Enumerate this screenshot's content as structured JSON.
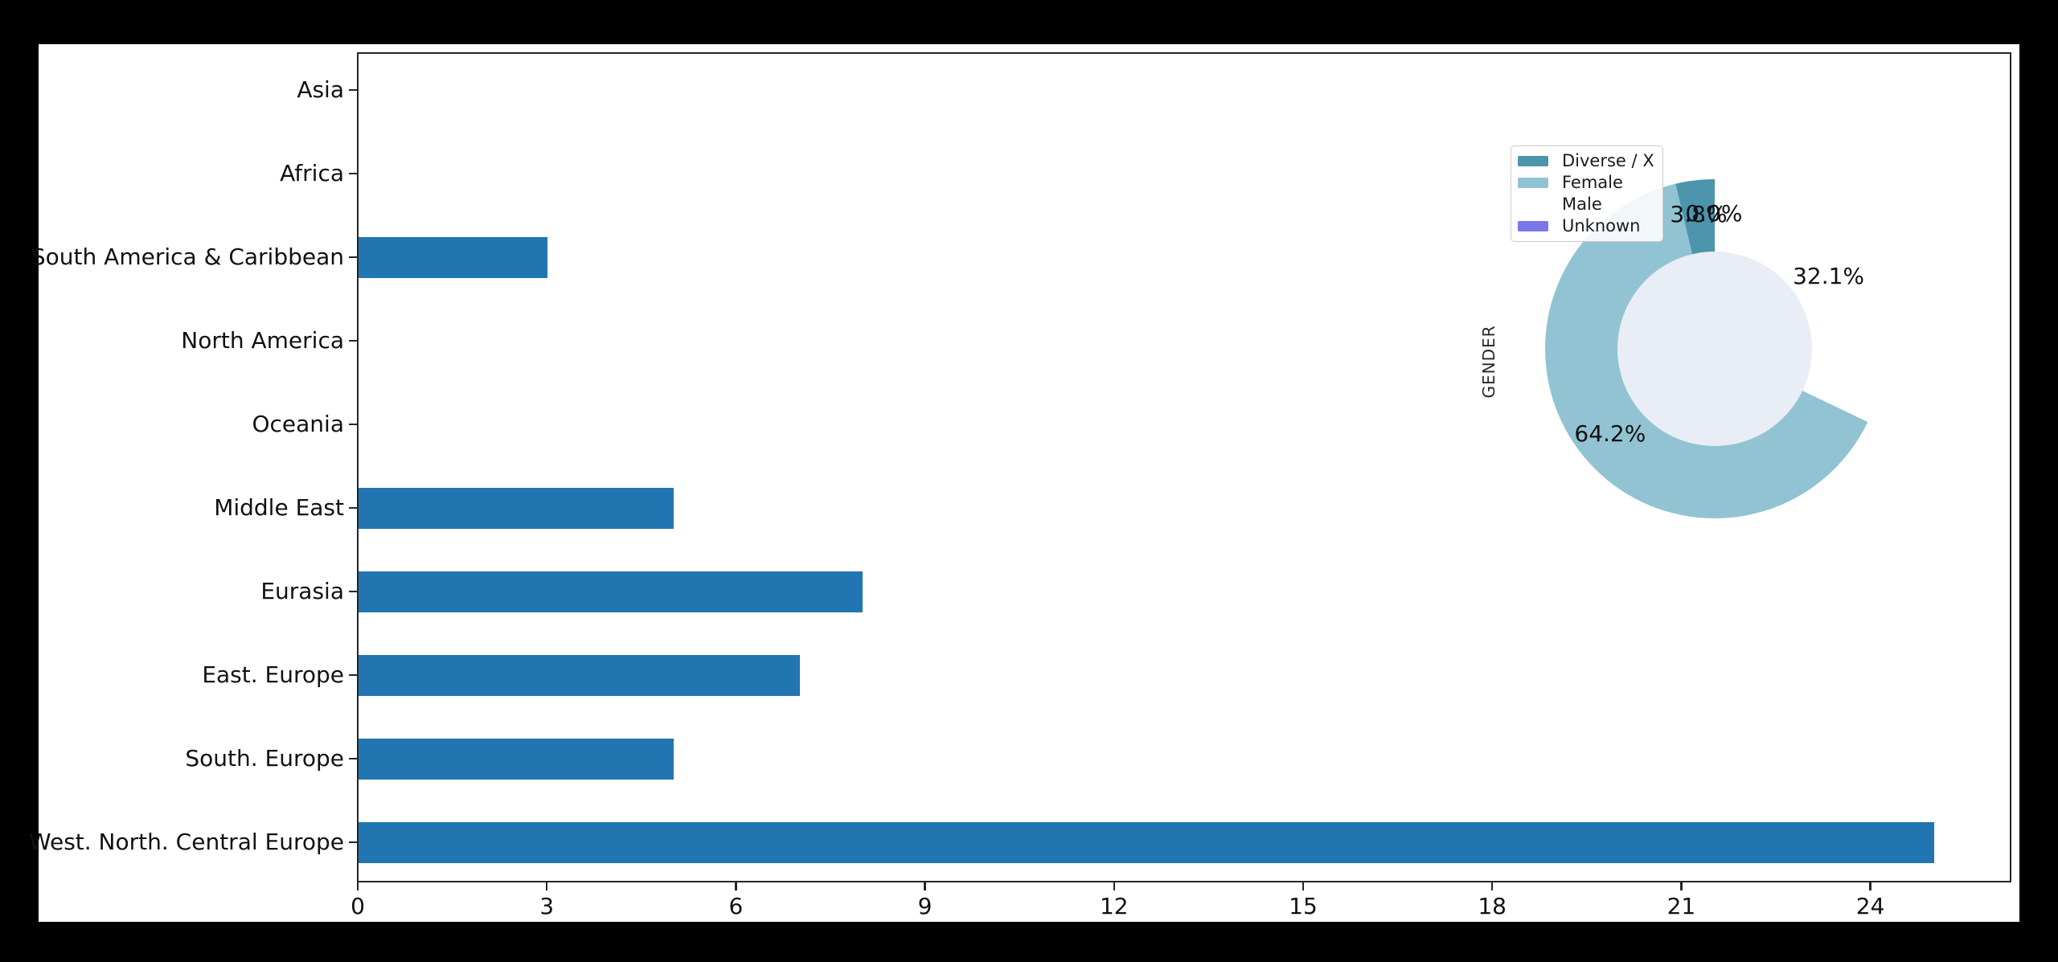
{
  "figure": {
    "canvas_background": "#000000",
    "figure_background": "#ffffff",
    "plot_background": "#E9EDF6",
    "spine_color": "#262626",
    "text_color": "#111111"
  },
  "chart_data": [
    {
      "type": "bar",
      "orientation": "horizontal",
      "title": "",
      "xlabel": "",
      "ylabel": "",
      "categories": [
        "Asia",
        "Africa",
        "South America & Caribbean",
        "North America",
        "Oceania",
        "Middle East",
        "Eurasia",
        "East. Europe",
        "South. Europe",
        "West. North. Central Europe"
      ],
      "values": [
        0,
        0,
        3,
        0,
        0,
        5,
        8,
        7,
        5,
        25
      ],
      "xlim": [
        0,
        26.25
      ],
      "xticks": [
        "0",
        "3",
        "6",
        "9",
        "12",
        "15",
        "18",
        "21",
        "24"
      ],
      "xtick_values": [
        0,
        3,
        6,
        9,
        12,
        15,
        18,
        21,
        24
      ],
      "bar_color": "#2176B2",
      "grid": "off",
      "legend": "none"
    },
    {
      "type": "pie",
      "subtype": "donut",
      "ylabel": "GENDER",
      "start": "top",
      "direction": "counterclockwise",
      "labels": [
        "Diverse / X",
        "Female",
        "Male",
        "Unknown"
      ],
      "values_percent": [
        3.8,
        64.2,
        32.1,
        0.0
      ],
      "pct_labels": [
        "3.8%",
        "64.2%",
        "32.1%",
        "0.0%"
      ],
      "colors": [
        "#4C95AC",
        "#92C3D2",
        "#FFFFFF",
        "#7B76E9"
      ],
      "legend_position": "upper left"
    }
  ]
}
